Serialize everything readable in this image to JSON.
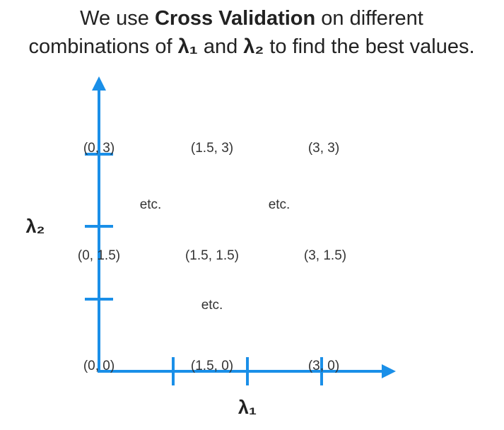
{
  "title": {
    "line1": {
      "before": "We use ",
      "bold": "Cross Validation",
      "after": " on different"
    },
    "line2": {
      "before": "combinations of ",
      "bold1": "λ₁",
      "middle": " and ",
      "bold2": "λ₂",
      "after": " to find the best values."
    }
  },
  "axes": {
    "x_label": "λ₁",
    "y_label": "λ₂"
  },
  "points": [
    "(0, 3)",
    "(1.5, 3)",
    "(3, 3)",
    "(0, 1.5)",
    "(1.5, 1.5)",
    "(3, 1.5)",
    "(0, 0)",
    "(1.5, 0)",
    "(3, 0)"
  ],
  "notes": [
    "etc.",
    "etc.",
    "etc."
  ]
}
